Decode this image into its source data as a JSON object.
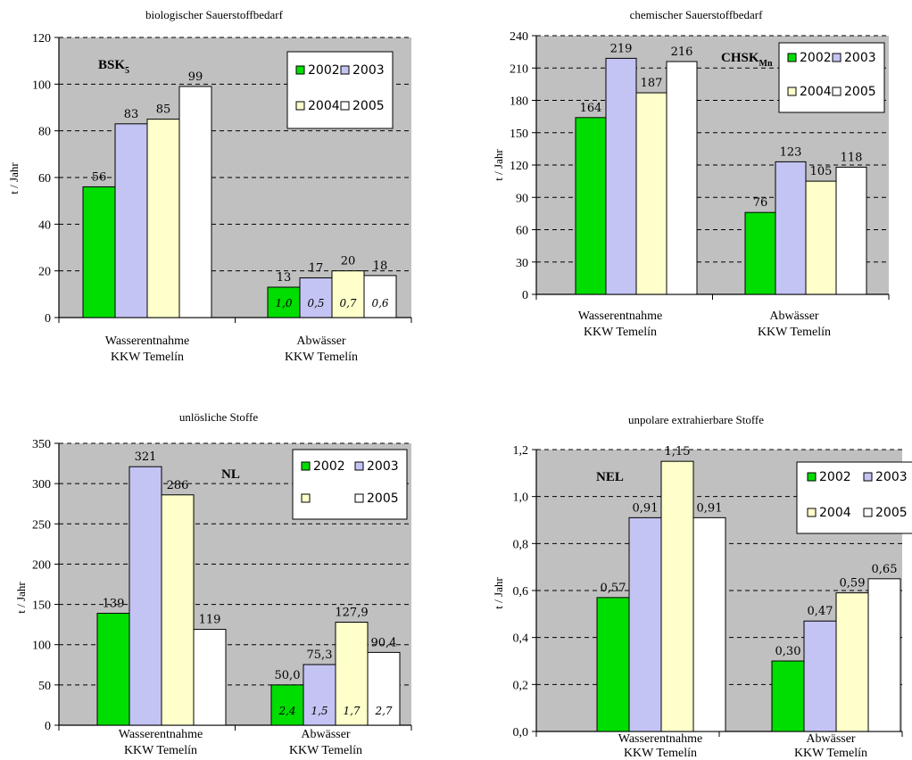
{
  "chart_data": [
    {
      "type": "bar",
      "title": "biologischer Sauerstoffbedarf",
      "ylabel": "t / Jahr",
      "code": "BSK",
      "code_sub": "5",
      "ylim": [
        0,
        120
      ],
      "yticks": [
        "0",
        "20",
        "40",
        "60",
        "80",
        "100",
        "120"
      ],
      "categories": [
        "Wasserentnahme KKW Temelín",
        "Abwässer KKW Temelín"
      ],
      "series": [
        {
          "name": "2002",
          "values": [
            56,
            13
          ],
          "labels": [
            "56",
            "13"
          ],
          "inner": [
            "",
            "1,0"
          ]
        },
        {
          "name": "2003",
          "values": [
            83,
            17
          ],
          "labels": [
            "83",
            "17"
          ],
          "inner": [
            "",
            "0,5"
          ]
        },
        {
          "name": "2004",
          "values": [
            85,
            20
          ],
          "labels": [
            "85",
            "20"
          ],
          "inner": [
            "",
            "0,7"
          ]
        },
        {
          "name": "2005",
          "values": [
            99,
            18
          ],
          "labels": [
            "99",
            "18"
          ],
          "inner": [
            "",
            "0,6"
          ]
        }
      ],
      "legend_position": "top-right",
      "grid": true
    },
    {
      "type": "bar",
      "title": "chemischer Sauerstoffbedarf",
      "ylabel": "t / Jahr",
      "code": "CHSK",
      "code_sub": "Mn",
      "ylim": [
        0,
        240
      ],
      "yticks": [
        "0",
        "30",
        "60",
        "90",
        "120",
        "150",
        "180",
        "210",
        "240"
      ],
      "categories": [
        "Wasserentnahme KKW Temelín",
        "Abwässer KKW Temelín"
      ],
      "series": [
        {
          "name": "2002",
          "values": [
            164,
            76
          ],
          "labels": [
            "164",
            "76"
          ],
          "inner": [
            "",
            ""
          ]
        },
        {
          "name": "2003",
          "values": [
            219,
            123
          ],
          "labels": [
            "219",
            "123"
          ],
          "inner": [
            "",
            ""
          ]
        },
        {
          "name": "2004",
          "values": [
            187,
            105
          ],
          "labels": [
            "187",
            "105"
          ],
          "inner": [
            "",
            ""
          ]
        },
        {
          "name": "2005",
          "values": [
            216,
            118
          ],
          "labels": [
            "216",
            "118"
          ],
          "inner": [
            "",
            ""
          ]
        }
      ],
      "legend_position": "top-right",
      "grid": true
    },
    {
      "type": "bar",
      "title": "unlösliche Stoffe",
      "ylabel": "t / Jahr",
      "code": "NL",
      "code_sub": "",
      "ylim": [
        0,
        350
      ],
      "yticks": [
        "0",
        "50",
        "100",
        "150",
        "200",
        "250",
        "300",
        "350"
      ],
      "categories": [
        "Wasserentnahme KKW Temelín",
        "Abwässer KKW Temelín"
      ],
      "series": [
        {
          "name": "2002",
          "values": [
            139,
            50.0
          ],
          "labels": [
            "139",
            "50,0"
          ],
          "inner": [
            "",
            "2,4"
          ]
        },
        {
          "name": "2003",
          "values": [
            321,
            75.3
          ],
          "labels": [
            "321",
            "75,3"
          ],
          "inner": [
            "",
            "1,5"
          ]
        },
        {
          "name": "",
          "values": [
            286,
            127.9
          ],
          "labels": [
            "286",
            "127,9"
          ],
          "inner": [
            "",
            "1,7"
          ]
        },
        {
          "name": "2005",
          "values": [
            119,
            90.4
          ],
          "labels": [
            "119",
            "90,4"
          ],
          "inner": [
            "",
            "2,7"
          ]
        }
      ],
      "legend_position": "top-right",
      "grid": true
    },
    {
      "type": "bar",
      "title": "unpolare extrahierbare Stoffe",
      "ylabel": "t / Jahr",
      "code": "NEL",
      "code_sub": "",
      "ylim": [
        0,
        1.2
      ],
      "yticks": [
        "0,0",
        "0,2",
        "0,4",
        "0,6",
        "0,8",
        "1,0",
        "1,2"
      ],
      "categories": [
        "Wasserentnahme KKW Temelín",
        "Abwässer KKW Temelín"
      ],
      "series": [
        {
          "name": "2002",
          "values": [
            0.57,
            0.3
          ],
          "labels": [
            "0,57",
            "0,30"
          ],
          "inner": [
            "",
            ""
          ]
        },
        {
          "name": "2003",
          "values": [
            0.91,
            0.47
          ],
          "labels": [
            "0,91",
            "0,47"
          ],
          "inner": [
            "",
            ""
          ]
        },
        {
          "name": "2004",
          "values": [
            1.15,
            0.59
          ],
          "labels": [
            "1,15",
            "0,59"
          ],
          "inner": [
            "",
            ""
          ]
        },
        {
          "name": "2005",
          "values": [
            0.91,
            0.65
          ],
          "labels": [
            "0,91",
            "0,65"
          ],
          "inner": [
            "",
            ""
          ]
        }
      ],
      "legend_position": "top-right",
      "grid": true
    }
  ],
  "colors": {
    "2002": "#00dd00",
    "2003": "#c4c4f4",
    "2004": "#ffffcc",
    "2005": "#ffffff",
    "plot_bg": "#c0c0c0"
  }
}
